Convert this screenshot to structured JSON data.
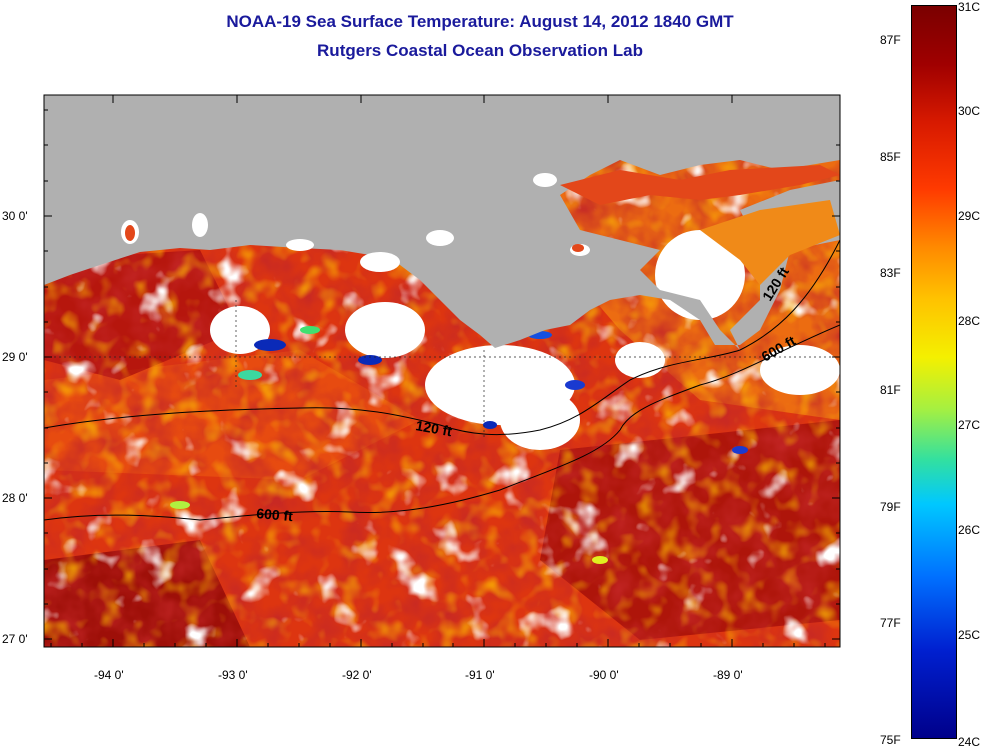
{
  "title_line1": "NOAA-19 Sea Surface Temperature:  August 14, 2012 1840 GMT",
  "title_line2": "Rutgers Coastal Ocean Observation Lab",
  "y_axis_labels": [
    "30 0'",
    "29 0'",
    "28 0'",
    "27 0'"
  ],
  "x_axis_labels": [
    "-94 0'",
    "-93 0'",
    "-92 0'",
    "-91 0'",
    "-90 0'",
    "-89 0'"
  ],
  "contour_labels": [
    "120 ft",
    "600 ft",
    "120 ft",
    "600 ft"
  ],
  "colorbar": {
    "celsius_labels": [
      "31C",
      "30C",
      "29C",
      "28C",
      "27C",
      "26C",
      "25C",
      "24C"
    ],
    "fahrenheit_labels": [
      "87F",
      "85F",
      "83F",
      "81F",
      "79F",
      "77F",
      "75F"
    ],
    "range_c": [
      24,
      31
    ],
    "palette": "jet"
  },
  "colors": {
    "title": "#1a1a9c",
    "land": "#b0b0b0",
    "cloud": "#ffffff",
    "water_warm": "#d42a0c",
    "water_hot": "#9a0a0a"
  }
}
